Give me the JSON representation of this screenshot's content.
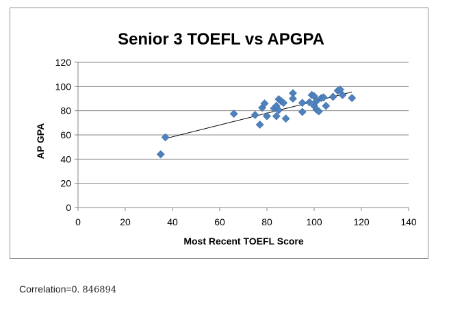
{
  "chart_data": {
    "type": "scatter",
    "title": "Senior 3 TOEFL vs APGPA",
    "xlabel": "Most Recent TOEFL Score",
    "ylabel": "AP GPA",
    "xlim": [
      0,
      140
    ],
    "ylim": [
      0,
      120
    ],
    "x_ticks": [
      "0",
      "20",
      "40",
      "60",
      "80",
      "100",
      "120",
      "140"
    ],
    "y_ticks": [
      "0",
      "20",
      "40",
      "60",
      "80",
      "100",
      "120"
    ],
    "grid": "horizontal",
    "legend": "none",
    "marker": "diamond",
    "marker_color": "#4f81bd",
    "trendline": {
      "type": "linear",
      "x": [
        37,
        116
      ],
      "y": [
        57,
        95.5
      ],
      "color": "#000000"
    },
    "points": [
      {
        "x": 35,
        "y": 44
      },
      {
        "x": 37,
        "y": 58
      },
      {
        "x": 66,
        "y": 77.5
      },
      {
        "x": 75,
        "y": 76.5
      },
      {
        "x": 77,
        "y": 68.5
      },
      {
        "x": 78,
        "y": 82.5
      },
      {
        "x": 79,
        "y": 86
      },
      {
        "x": 80,
        "y": 75.5
      },
      {
        "x": 83,
        "y": 82
      },
      {
        "x": 84,
        "y": 84
      },
      {
        "x": 84,
        "y": 75.5
      },
      {
        "x": 85,
        "y": 89.5
      },
      {
        "x": 85,
        "y": 80.5
      },
      {
        "x": 86,
        "y": 88
      },
      {
        "x": 87,
        "y": 86.5
      },
      {
        "x": 88,
        "y": 73.5
      },
      {
        "x": 91,
        "y": 94.5
      },
      {
        "x": 91,
        "y": 90
      },
      {
        "x": 95,
        "y": 86.5
      },
      {
        "x": 95,
        "y": 79
      },
      {
        "x": 98,
        "y": 87
      },
      {
        "x": 99,
        "y": 93
      },
      {
        "x": 100,
        "y": 92
      },
      {
        "x": 100,
        "y": 84
      },
      {
        "x": 101,
        "y": 81
      },
      {
        "x": 101,
        "y": 88
      },
      {
        "x": 102,
        "y": 79.5
      },
      {
        "x": 103,
        "y": 90.5
      },
      {
        "x": 104,
        "y": 91
      },
      {
        "x": 105,
        "y": 84
      },
      {
        "x": 108,
        "y": 91.5
      },
      {
        "x": 110,
        "y": 96.5
      },
      {
        "x": 111,
        "y": 97.5
      },
      {
        "x": 112,
        "y": 93
      },
      {
        "x": 116,
        "y": 90.5
      }
    ]
  },
  "caption": {
    "label": "Correlation=0.",
    "value": " 846894"
  }
}
